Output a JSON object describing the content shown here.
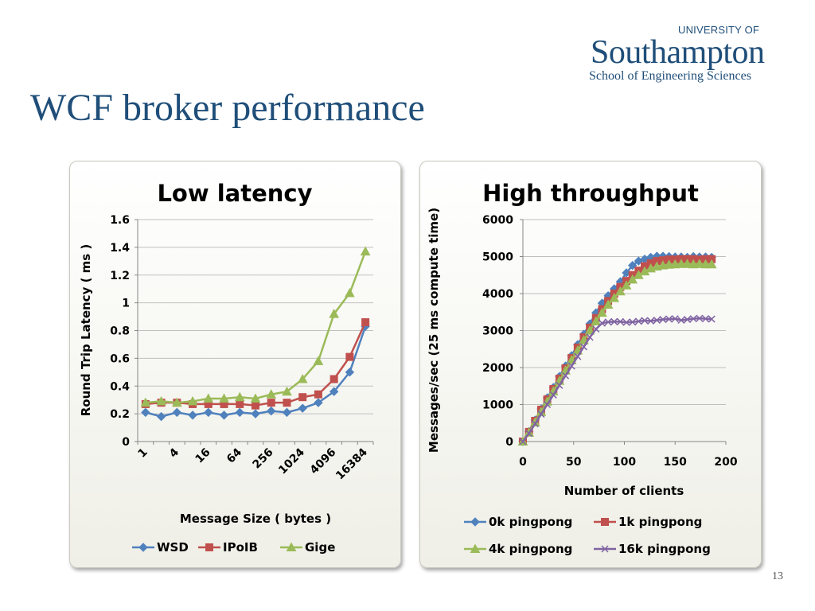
{
  "slide": {
    "title": "WCF broker performance",
    "page_number": "13",
    "logo": {
      "line1": "UNIVERSITY OF",
      "line2": "Southampton",
      "line3": "School of Engineering Sciences"
    }
  },
  "colors": {
    "title": "#1f4e79",
    "blue": "#4f81bd",
    "red": "#c0504d",
    "green": "#9bbb59",
    "purple": "#8064a2"
  },
  "chart_data": [
    {
      "type": "line",
      "title": "Low latency",
      "xlabel": "Message Size ( bytes )",
      "ylabel": "Round Trip Latency ( ms )",
      "ylim": [
        0,
        1.6
      ],
      "yticks": [
        "0",
        "0.2",
        "0.4",
        "0.6",
        "0.8",
        "1",
        "1.2",
        "1.4",
        "1.6"
      ],
      "categories": [
        "1",
        "2",
        "4",
        "8",
        "16",
        "32",
        "64",
        "128",
        "256",
        "512",
        "1024",
        "2048",
        "4096",
        "8192",
        "16384"
      ],
      "xtick_labels": [
        "1",
        "4",
        "16",
        "64",
        "256",
        "1024",
        "4096",
        "16384"
      ],
      "grid": "horizontal",
      "legend_position": "bottom",
      "series": [
        {
          "name": "WSD",
          "color": "#4f81bd",
          "marker": "diamond",
          "values": [
            0.21,
            0.18,
            0.21,
            0.19,
            0.21,
            0.19,
            0.21,
            0.2,
            0.22,
            0.21,
            0.24,
            0.28,
            0.36,
            0.5,
            0.83
          ]
        },
        {
          "name": "IPoIB",
          "color": "#c0504d",
          "marker": "square",
          "values": [
            0.27,
            0.28,
            0.28,
            0.27,
            0.27,
            0.27,
            0.27,
            0.26,
            0.28,
            0.28,
            0.32,
            0.34,
            0.45,
            0.61,
            0.86
          ]
        },
        {
          "name": "Gige",
          "color": "#9bbb59",
          "marker": "triangle",
          "values": [
            0.28,
            0.29,
            0.28,
            0.29,
            0.31,
            0.31,
            0.32,
            0.31,
            0.34,
            0.36,
            0.45,
            0.58,
            0.92,
            1.07,
            1.37
          ]
        }
      ]
    },
    {
      "type": "line",
      "title": "High throughput",
      "xlabel": "Number of clients",
      "ylabel": "Messages/sec (25 ms compute time)",
      "xlim": [
        0,
        200
      ],
      "ylim": [
        0,
        6000
      ],
      "xticks": [
        "0",
        "50",
        "100",
        "150",
        "200"
      ],
      "yticks": [
        "0",
        "1000",
        "2000",
        "3000",
        "4000",
        "5000",
        "6000"
      ],
      "grid": "horizontal",
      "legend_position": "bottom",
      "x": [
        0,
        6,
        12,
        18,
        24,
        30,
        36,
        42,
        48,
        54,
        60,
        66,
        72,
        78,
        84,
        90,
        96,
        102,
        108,
        114,
        120,
        126,
        132,
        138,
        144,
        150,
        156,
        162,
        168,
        174,
        180,
        186
      ],
      "series": [
        {
          "name": "0k pingpong",
          "color": "#4f81bd",
          "marker": "diamond",
          "values": [
            0,
            270,
            580,
            880,
            1180,
            1460,
            1760,
            2040,
            2320,
            2620,
            2900,
            3180,
            3480,
            3740,
            3940,
            4130,
            4320,
            4560,
            4760,
            4880,
            4930,
            4980,
            5010,
            5010,
            5000,
            4990,
            4990,
            4980,
            5000,
            4990,
            4990,
            4980
          ]
        },
        {
          "name": "1k pingpong",
          "color": "#c0504d",
          "marker": "square",
          "values": [
            0,
            260,
            560,
            860,
            1140,
            1420,
            1700,
            1980,
            2260,
            2540,
            2820,
            3080,
            3340,
            3580,
            3800,
            4000,
            4180,
            4340,
            4500,
            4620,
            4740,
            4820,
            4880,
            4900,
            4920,
            4920,
            4930,
            4930,
            4930,
            4920,
            4930,
            4930
          ]
        },
        {
          "name": "4k pingpong",
          "color": "#9bbb59",
          "marker": "triangle",
          "values": [
            0,
            240,
            520,
            800,
            1080,
            1360,
            1640,
            1920,
            2200,
            2460,
            2740,
            3000,
            3250,
            3480,
            3700,
            3880,
            4060,
            4220,
            4380,
            4500,
            4600,
            4680,
            4730,
            4760,
            4780,
            4790,
            4800,
            4800,
            4790,
            4800,
            4790,
            4790
          ]
        },
        {
          "name": "16k pingpong",
          "color": "#8064a2",
          "marker": "x",
          "values": [
            0,
            220,
            480,
            740,
            1000,
            1260,
            1520,
            1780,
            2040,
            2300,
            2560,
            2820,
            3040,
            3200,
            3230,
            3240,
            3240,
            3220,
            3230,
            3250,
            3270,
            3260,
            3280,
            3300,
            3310,
            3320,
            3280,
            3300,
            3320,
            3330,
            3320,
            3310
          ]
        }
      ]
    }
  ]
}
